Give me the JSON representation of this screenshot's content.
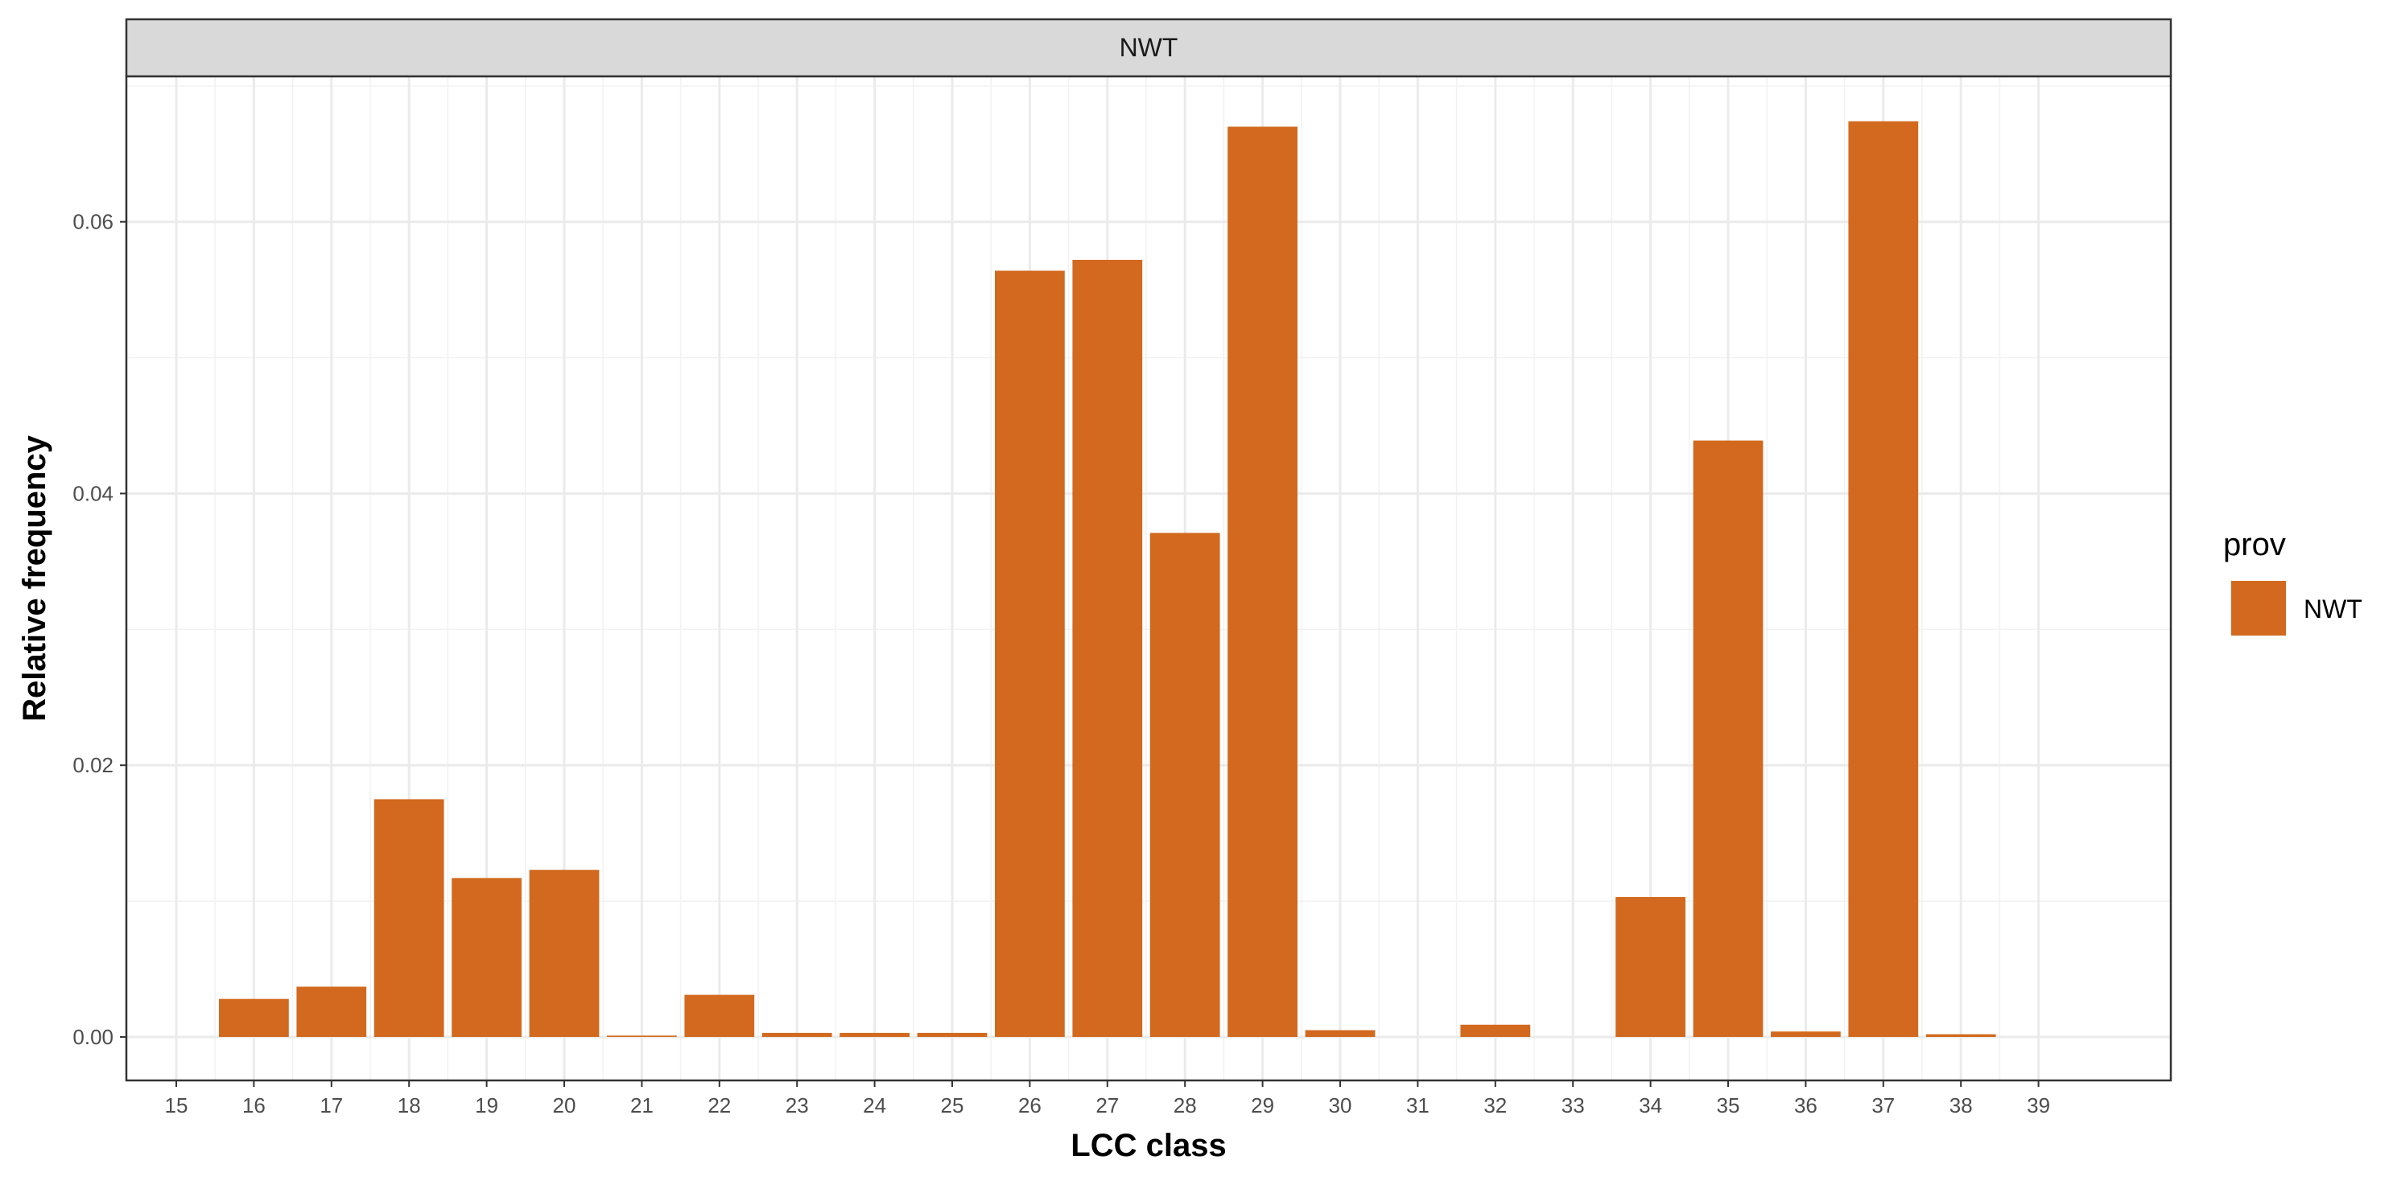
{
  "chart_data": {
    "type": "bar",
    "facet_label": "NWT",
    "xlabel": "LCC class",
    "ylabel": "Relative frequency",
    "categories": [
      "15",
      "16",
      "17",
      "18",
      "19",
      "20",
      "21",
      "22",
      "23",
      "24",
      "25",
      "26",
      "27",
      "28",
      "29",
      "30",
      "31",
      "32",
      "33",
      "34",
      "35",
      "36",
      "37",
      "38",
      "39"
    ],
    "series": [
      {
        "name": "NWT",
        "color": "#D2691E",
        "values": [
          0,
          0.0028,
          0.0037,
          0.0175,
          0.0117,
          0.0123,
          0.0001,
          0.0031,
          0.0003,
          0.0003,
          0.0003,
          0.0564,
          0.0572,
          0.0371,
          0.067,
          0.0005,
          0,
          0.0009,
          0,
          0.0103,
          0.0439,
          0.0004,
          0.0674,
          0.0002,
          0
        ]
      }
    ],
    "ylim": [
      -0.0032,
      0.0707
    ],
    "yticks": [
      0.0,
      0.02,
      0.04,
      0.06
    ],
    "ytick_labels": [
      "0.00",
      "0.02",
      "0.04",
      "0.06"
    ],
    "grid": true,
    "legend": {
      "title": "prov",
      "position": "right",
      "entries": [
        "NWT"
      ]
    }
  }
}
